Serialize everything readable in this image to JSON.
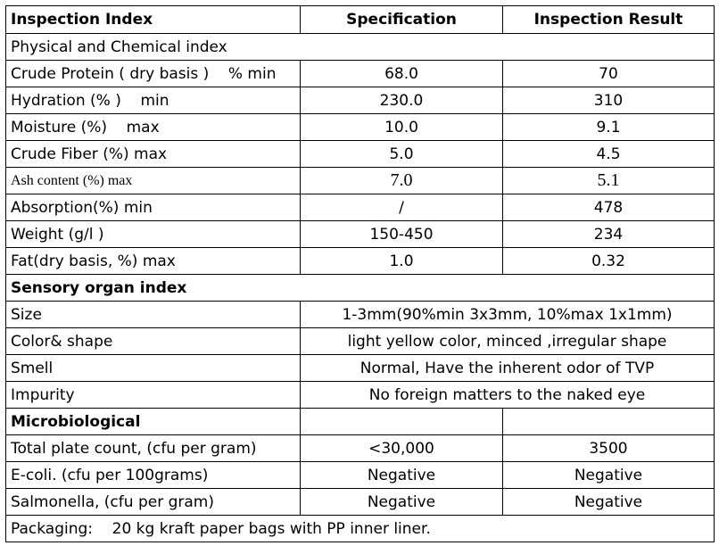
{
  "header": {
    "col1": "Inspection Index",
    "col2": "Specification",
    "col3": "Inspection Result"
  },
  "physical": {
    "title": "Physical and Chemical index",
    "rows": [
      {
        "index": "Crude Protein ( dry basis )    % min",
        "spec": "68.0",
        "result": "70"
      },
      {
        "index": "Hydration (% )    min",
        "spec": "230.0",
        "result": "310"
      },
      {
        "index": "Moisture (%)    max",
        "spec": "10.0",
        "result": "9.1"
      },
      {
        "index": "Crude Fiber (%) max",
        "spec": "5.0",
        "result": "4.5"
      },
      {
        "index": "Ash content (%) max",
        "spec": "7.0",
        "result": "5.1"
      },
      {
        "index": "Absorption(%) min",
        "spec": "/",
        "result": "478"
      },
      {
        "index": "Weight (g/l )",
        "spec": "150-450",
        "result": "234"
      },
      {
        "index": "Fat(dry basis, %) max",
        "spec": "1.0",
        "result": "0.32"
      }
    ]
  },
  "sensory": {
    "title": "Sensory organ index",
    "rows": [
      {
        "index": "Size",
        "value": "1-3mm(90%min 3x3mm, 10%max 1x1mm)"
      },
      {
        "index": "Color& shape",
        "value": "light yellow color, minced ,irregular shape"
      },
      {
        "index": "Smell",
        "value": "Normal, Have the inherent odor of TVP"
      },
      {
        "index": "Impurity",
        "value": "No foreign matters to the naked eye"
      }
    ]
  },
  "micro": {
    "title": "Microbiological",
    "rows": [
      {
        "index": "Total plate count, (cfu per gram)",
        "spec": "<30,000",
        "result": "3500"
      },
      {
        "index": "E-coli. (cfu per 100grams)",
        "spec": "Negative",
        "result": "Negative"
      },
      {
        "index": "Salmonella, (cfu per gram)",
        "spec": "Negative",
        "result": "Negative"
      }
    ]
  },
  "packaging": "Packaging:    20 kg kraft paper bags with PP inner liner."
}
